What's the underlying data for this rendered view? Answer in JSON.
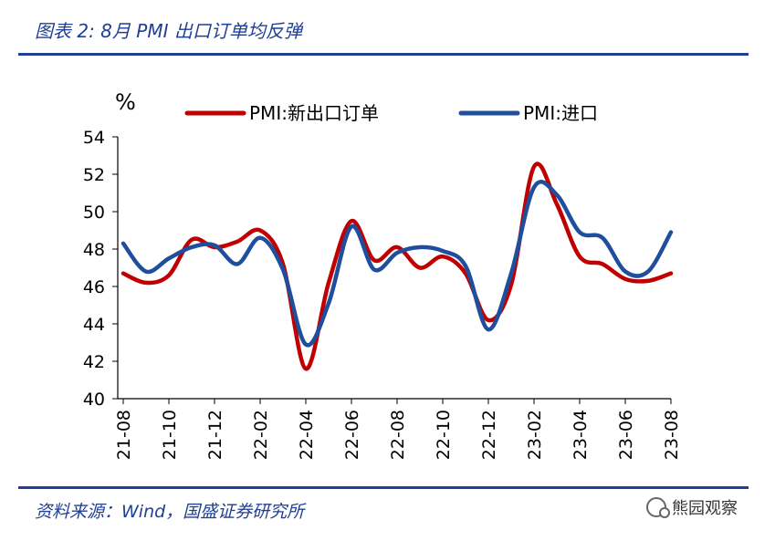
{
  "header": {
    "title": "图表 2:  8月 PMI 出口订单均反弹"
  },
  "footer": {
    "source": "资料来源：Wind，国盛证券研究所",
    "watermark": "熊园观察"
  },
  "colors": {
    "accent": "#1f3f94",
    "export_orders": "#c00000",
    "imports": "#1f4e9c"
  },
  "chart_data": {
    "type": "line",
    "ylabel": "%",
    "ylim": [
      40,
      54
    ],
    "yticks": [
      40,
      42,
      44,
      46,
      48,
      50,
      52,
      54
    ],
    "grid": false,
    "legend_position": "top",
    "x": [
      "21-08",
      "21-09",
      "21-10",
      "21-11",
      "21-12",
      "22-01",
      "22-02",
      "22-03",
      "22-04",
      "22-05",
      "22-06",
      "22-07",
      "22-08",
      "22-09",
      "22-10",
      "22-11",
      "22-12",
      "23-01",
      "23-02",
      "23-03",
      "23-04",
      "23-05",
      "23-06",
      "23-07",
      "23-08"
    ],
    "xtick_labels": [
      "21-08",
      "21-10",
      "21-12",
      "22-02",
      "22-04",
      "22-06",
      "22-08",
      "22-10",
      "22-12",
      "23-02",
      "23-04",
      "23-06",
      "23-08"
    ],
    "series": [
      {
        "name": "PMI:新出口订单",
        "color": "#c00000",
        "values": [
          46.7,
          46.2,
          46.6,
          48.5,
          48.1,
          48.4,
          49.0,
          47.2,
          41.6,
          46.2,
          49.5,
          47.4,
          48.1,
          47.0,
          47.6,
          46.7,
          44.2,
          46.1,
          52.4,
          50.4,
          47.6,
          47.2,
          46.4,
          46.3,
          46.7
        ]
      },
      {
        "name": "PMI:进口",
        "color": "#1f4e9c",
        "values": [
          48.3,
          46.8,
          47.5,
          48.1,
          48.2,
          47.2,
          48.6,
          46.9,
          42.9,
          45.1,
          49.2,
          46.9,
          47.8,
          48.1,
          47.9,
          47.1,
          43.7,
          46.7,
          51.3,
          50.9,
          48.9,
          48.6,
          46.8,
          46.8,
          48.9
        ]
      }
    ]
  }
}
